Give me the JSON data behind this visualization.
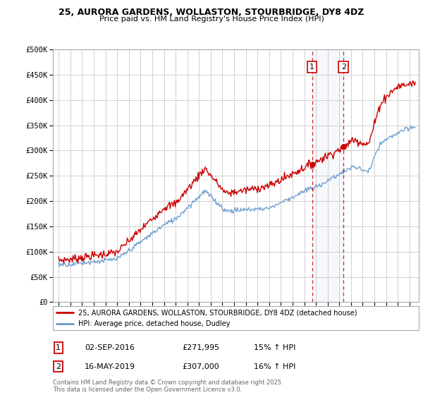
{
  "title_line1": "25, AURORA GARDENS, WOLLASTON, STOURBRIDGE, DY8 4DZ",
  "title_line2": "Price paid vs. HM Land Registry's House Price Index (HPI)",
  "ylabel_ticks": [
    "£0",
    "£50K",
    "£100K",
    "£150K",
    "£200K",
    "£250K",
    "£300K",
    "£350K",
    "£400K",
    "£450K",
    "£500K"
  ],
  "ytick_values": [
    0,
    50000,
    100000,
    150000,
    200000,
    250000,
    300000,
    350000,
    400000,
    450000,
    500000
  ],
  "xlim": [
    1994.5,
    2025.8
  ],
  "ylim": [
    0,
    500000
  ],
  "red_color": "#cc0000",
  "blue_color": "#6699cc",
  "vline_color": "#cc0000",
  "marker_color": "#cc0000",
  "event1_x": 2016.67,
  "event1_y": 271995,
  "event1_label": "1",
  "event2_x": 2019.37,
  "event2_y": 307000,
  "event2_label": "2",
  "legend_line1": "25, AURORA GARDENS, WOLLASTON, STOURBRIDGE, DY8 4DZ (detached house)",
  "legend_line2": "HPI: Average price, detached house, Dudley",
  "table_row1": [
    "1",
    "02-SEP-2016",
    "£271,995",
    "15% ↑ HPI"
  ],
  "table_row2": [
    "2",
    "16-MAY-2019",
    "£307,000",
    "16% ↑ HPI"
  ],
  "footnote": "Contains HM Land Registry data © Crown copyright and database right 2025.\nThis data is licensed under the Open Government Licence v3.0.",
  "background_color": "#ffffff",
  "grid_color": "#d0d0d0"
}
